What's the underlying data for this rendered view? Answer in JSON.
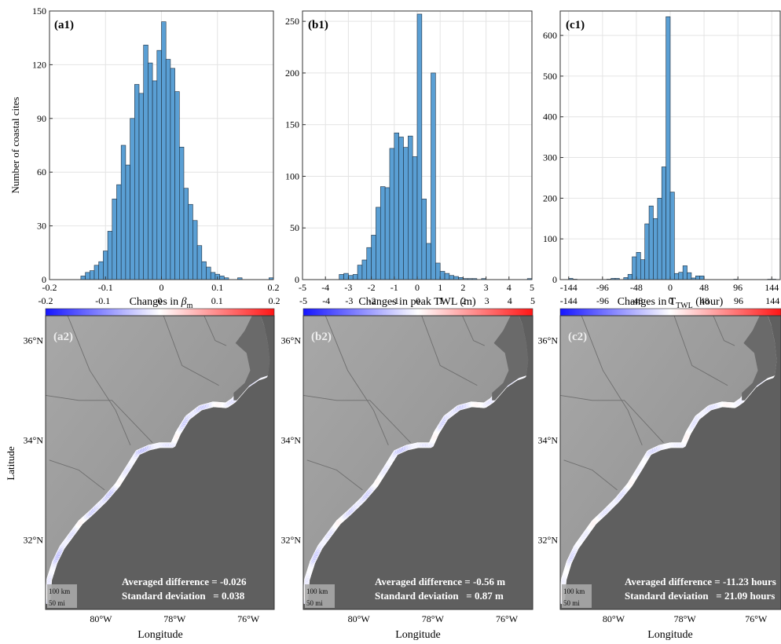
{
  "panels": {
    "a1": "(a1)",
    "b1": "(b1)",
    "c1": "(c1)",
    "a2": "(a2)",
    "b2": "(b2)",
    "c2": "(c2)"
  },
  "colors": {
    "bar_fill": "#5a9fd4",
    "bar_edge": "#1f2f3f",
    "cbar_low": "#1515ff",
    "cbar_mid": "#ffffff",
    "cbar_high": "#ff1515",
    "map_ocean": "#5e5e5e",
    "map_land": "#9a9a9a"
  },
  "chart_data": [
    {
      "id": "a1",
      "type": "bar",
      "ylabel": "Number of coastal cites",
      "xlabel_prefix": "Changes in ",
      "xlabel_symbol": "β",
      "xlabel_subscript": "m",
      "xlim": [
        -0.2,
        0.2
      ],
      "ylim": [
        0,
        150
      ],
      "xticks": [
        "-0.2",
        "-0.1",
        "0",
        "0.1",
        "0.2"
      ],
      "xtick_values": [
        -0.2,
        -0.1,
        0,
        0.1,
        0.2
      ],
      "yticks": [
        "0",
        "30",
        "60",
        "90",
        "120",
        "150"
      ],
      "ytick_values": [
        0,
        30,
        60,
        90,
        120,
        150
      ],
      "bin_width": 0.008,
      "bin_starts": [
        -0.144,
        -0.136,
        -0.128,
        -0.12,
        -0.112,
        -0.104,
        -0.096,
        -0.088,
        -0.08,
        -0.072,
        -0.064,
        -0.056,
        -0.048,
        -0.04,
        -0.032,
        -0.024,
        -0.016,
        -0.008,
        0,
        0.008,
        0.016,
        0.024,
        0.032,
        0.04,
        0.048,
        0.056,
        0.064,
        0.072,
        0.08,
        0.088,
        0.096,
        0.104,
        0.112,
        0.12,
        0.128,
        0.136,
        0.144,
        0.152,
        0.16,
        0.168,
        0.176,
        0.184,
        0.192
      ],
      "values": [
        2,
        4,
        5,
        8,
        10,
        16,
        27,
        45,
        53,
        75,
        64,
        90,
        109,
        104,
        131,
        121,
        111,
        128,
        144,
        123,
        118,
        105,
        74,
        51,
        42,
        33,
        19,
        10,
        7,
        4,
        3,
        2,
        1,
        0,
        0,
        1,
        0,
        0,
        0,
        0,
        0,
        0,
        1
      ],
      "grid": true
    },
    {
      "id": "b1",
      "type": "bar",
      "xlabel": "Changes in peak TWL (m)",
      "xlim": [
        -5,
        5
      ],
      "ylim": [
        0,
        260
      ],
      "xticks": [
        "-5",
        "-4",
        "-3",
        "-2",
        "-1",
        "0",
        "1",
        "2",
        "3",
        "4",
        "5"
      ],
      "xtick_values": [
        -5,
        -4,
        -3,
        -2,
        -1,
        0,
        1,
        2,
        3,
        4,
        5
      ],
      "yticks": [
        "0",
        "50",
        "100",
        "150",
        "200",
        "250"
      ],
      "ytick_values": [
        0,
        50,
        100,
        150,
        200,
        250
      ],
      "bin_width": 0.2,
      "bin_starts": [
        -3.4,
        -3.2,
        -3.0,
        -2.8,
        -2.6,
        -2.4,
        -2.2,
        -2.0,
        -1.8,
        -1.6,
        -1.4,
        -1.2,
        -1.0,
        -0.8,
        -0.6,
        -0.4,
        -0.2,
        0,
        0.2,
        0.4,
        0.6,
        0.8,
        1.0,
        1.2,
        1.4,
        1.6,
        1.8,
        2.0,
        2.2,
        2.4,
        2.6,
        2.8,
        3.0,
        3.2,
        3.4,
        3.6,
        3.8,
        4.0,
        4.2,
        4.4,
        4.6,
        4.8
      ],
      "values": [
        5,
        6,
        4,
        5,
        14,
        19,
        31,
        43,
        70,
        90,
        89,
        127,
        142,
        138,
        128,
        139,
        119,
        257,
        78,
        35,
        200,
        16,
        8,
        6,
        4,
        3,
        2,
        1,
        1,
        1,
        0,
        1,
        0,
        0,
        0,
        0,
        0,
        0,
        0,
        0,
        0,
        1
      ],
      "grid": true
    },
    {
      "id": "c1",
      "type": "bar",
      "xlabel_prefix": "Changes in T",
      "xlabel_subscript": "TWL",
      "xlabel_suffix": " (hour)",
      "xlim": [
        -156,
        156
      ],
      "ylim": [
        0,
        660
      ],
      "xticks": [
        "-144",
        "-96",
        "-48",
        "0",
        "48",
        "96",
        "144"
      ],
      "xtick_values": [
        -144,
        -96,
        -48,
        0,
        48,
        96,
        144
      ],
      "yticks": [
        "0",
        "100",
        "200",
        "300",
        "400",
        "500",
        "600"
      ],
      "ytick_values": [
        0,
        100,
        200,
        300,
        400,
        500,
        600
      ],
      "bin_width": 6,
      "bin_starts": [
        -150,
        -144,
        -138,
        -132,
        -126,
        -120,
        -114,
        -108,
        -102,
        -96,
        -90,
        -84,
        -78,
        -72,
        -66,
        -60,
        -54,
        -48,
        -42,
        -36,
        -30,
        -24,
        -18,
        -12,
        -6,
        0,
        6,
        12,
        18,
        24,
        30,
        36,
        42,
        48,
        54,
        60,
        66,
        72,
        78,
        84,
        90,
        96,
        102,
        108,
        114,
        120,
        126,
        132,
        138,
        144,
        150
      ],
      "values": [
        0,
        3,
        1,
        0,
        0,
        0,
        0,
        0,
        0,
        0,
        1,
        3,
        3,
        0,
        5,
        13,
        56,
        67,
        49,
        137,
        181,
        150,
        200,
        277,
        646,
        215,
        15,
        18,
        34,
        17,
        4,
        9,
        9,
        0,
        0,
        0,
        0,
        0,
        0,
        0,
        1,
        0,
        0,
        0,
        0,
        0,
        0,
        0,
        1,
        1,
        0
      ],
      "grid": true
    }
  ],
  "colorbars": {
    "a": {
      "ticks": [
        "-0.2",
        "-0.1",
        "0",
        "0.1",
        "0.2"
      ],
      "values": [
        -0.2,
        -0.1,
        0,
        0.1,
        0.2
      ],
      "min": -0.2,
      "max": 0.2
    },
    "b": {
      "ticks": [
        "-5",
        "-4",
        "-3",
        "-2",
        "-1",
        "0",
        "1",
        "2",
        "3",
        "4",
        "5"
      ],
      "values": [
        -5,
        -4,
        -3,
        -2,
        -1,
        0,
        1,
        2,
        3,
        4,
        5
      ],
      "min": -5,
      "max": 5
    },
    "c": {
      "ticks": [
        "-144",
        "-96",
        "-48",
        "0",
        "48",
        "96",
        "144"
      ],
      "values": [
        -144,
        -96,
        -48,
        0,
        48,
        96,
        144
      ],
      "min": -156,
      "max": 156
    }
  },
  "maps": {
    "ylabel": "Latitude",
    "xlabel": "Longitude",
    "lat_ticks": [
      "36°N",
      "34°N",
      "32°N"
    ],
    "lat_values": [
      36,
      34,
      32
    ],
    "lon_ticks": [
      "80°W",
      "78°W",
      "76°W"
    ],
    "lon_values": [
      -80,
      -78,
      -76
    ],
    "lon_range": [
      -81.5,
      -75.3
    ],
    "lat_range": [
      30.6,
      36.5
    ],
    "scale_km": "100 km",
    "scale_mi": "50 mi",
    "a2": {
      "label1": "Averaged difference = -0.026",
      "label2": "Standard deviation   = 0.038"
    },
    "b2": {
      "label1": "Averaged difference = -0.56 m",
      "label2": "Standard deviation   = 0.87 m"
    },
    "c2": {
      "label1": "Averaged difference = -11.23 hours",
      "label2": "Standard deviation   = 21.09 hours"
    }
  }
}
